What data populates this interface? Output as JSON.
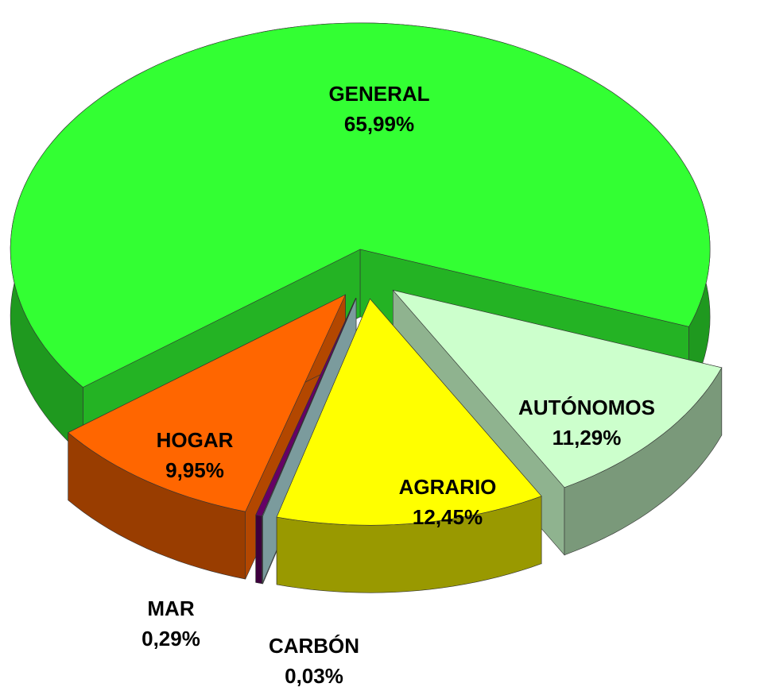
{
  "chart_data": {
    "type": "pie",
    "categories": [
      "GENERAL",
      "AUTÓNOMOS",
      "AGRARIO",
      "CARBÓN",
      "MAR",
      "HOGAR"
    ],
    "values": [
      65.99,
      11.29,
      12.45,
      0.03,
      0.29,
      9.95
    ],
    "value_labels": [
      "65,99%",
      "11,29%",
      "12,45%",
      "0,03%",
      "0,29%",
      "9,95%"
    ],
    "colors": [
      "#33ff33",
      "#ccffcc",
      "#ffff00",
      "#b0dde0",
      "#660066",
      "#ff6600"
    ]
  }
}
